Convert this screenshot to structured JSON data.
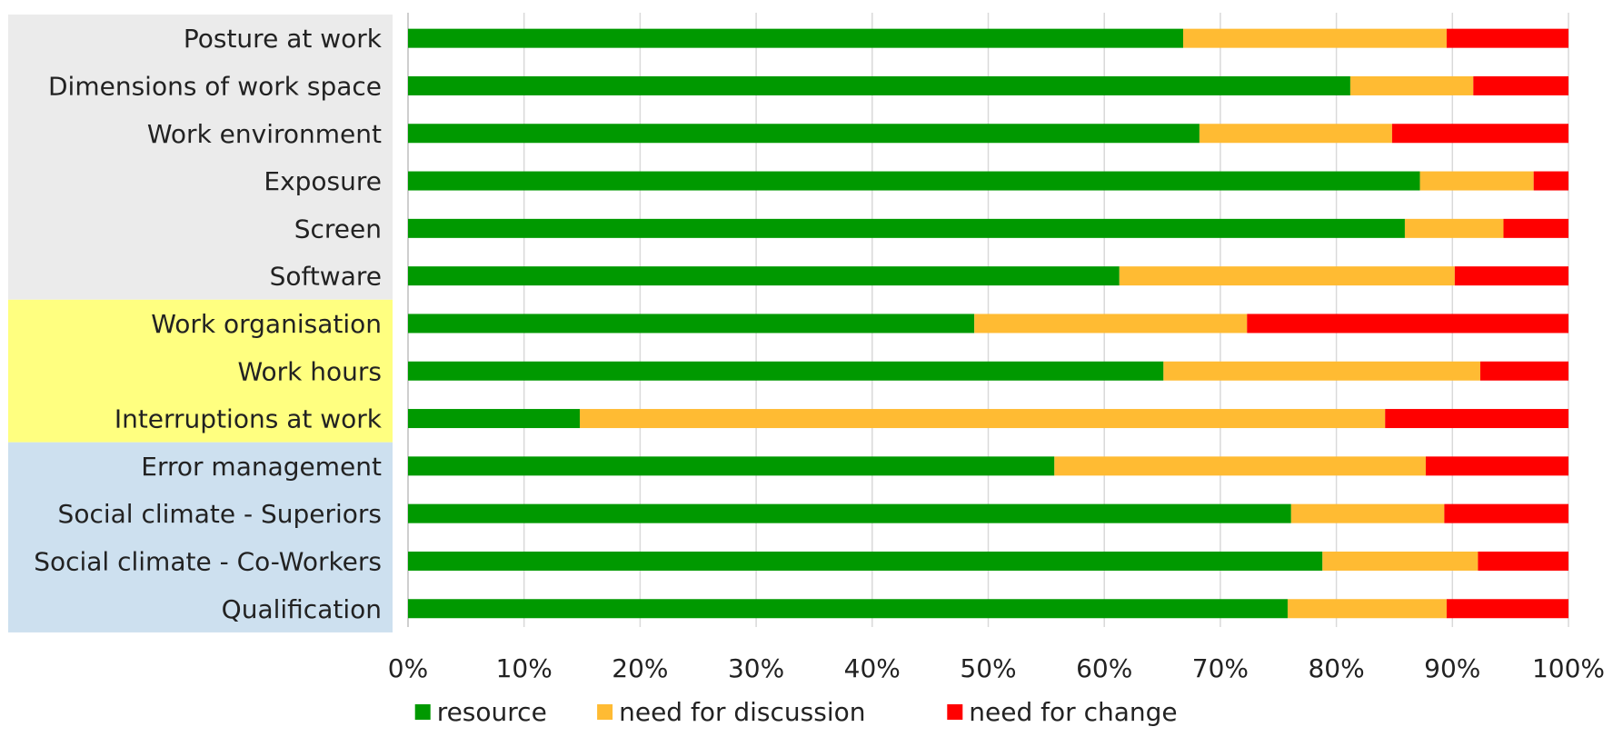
{
  "chart_data": {
    "type": "bar",
    "orientation": "horizontal",
    "stacked": "percent",
    "categories": [
      "Posture at work",
      "Dimensions of work space",
      "Work environment",
      "Exposure",
      "Screen",
      "Software",
      "Work organisation",
      "Work hours",
      "Interruptions at work",
      "Error management",
      "Social climate - Superiors",
      "Social climate - Co-Workers",
      "Qualification"
    ],
    "category_groups": [
      {
        "start": 0,
        "end": 5,
        "color": "#ebebeb"
      },
      {
        "start": 6,
        "end": 8,
        "color": "#ffff80"
      },
      {
        "start": 9,
        "end": 12,
        "color": "#cde0ef"
      }
    ],
    "series": [
      {
        "name": "resource",
        "color": "#009900",
        "values": [
          66.8,
          81.2,
          68.2,
          87.2,
          85.9,
          61.3,
          48.8,
          65.1,
          14.8,
          55.7,
          76.1,
          78.8,
          75.8
        ]
      },
      {
        "name": "need for discussion",
        "color": "#ffbb33",
        "values": [
          22.7,
          10.6,
          16.6,
          9.8,
          8.5,
          28.9,
          23.5,
          27.3,
          69.4,
          32.0,
          13.2,
          13.4,
          13.7
        ]
      },
      {
        "name": "need for change",
        "color": "#ff0000",
        "values": [
          10.5,
          8.2,
          15.2,
          3.0,
          5.6,
          9.8,
          27.7,
          7.6,
          15.8,
          12.3,
          10.7,
          7.8,
          10.5
        ]
      }
    ],
    "xlim": [
      0,
      100
    ],
    "xticks": [
      "0%",
      "10%",
      "20%",
      "30%",
      "40%",
      "50%",
      "60%",
      "70%",
      "80%",
      "90%",
      "100%"
    ],
    "grid": true,
    "legend_position": "bottom"
  }
}
